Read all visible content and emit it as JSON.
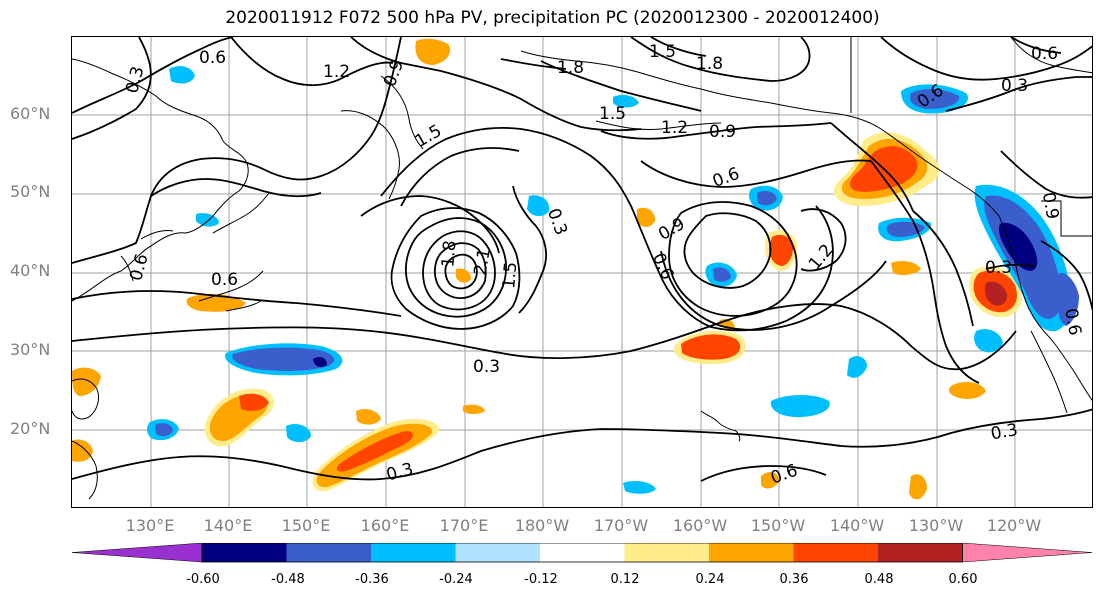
{
  "title": "2020011912 F072 500 hPa PV, precipitation PC (2020012300 - 2020012400)",
  "lat_labels": [
    "60°N",
    "50°N",
    "40°N",
    "30°N",
    "20°N"
  ],
  "lon_labels": [
    "130°E",
    "140°E",
    "150°E",
    "160°E",
    "170°E",
    "180°W",
    "170°W",
    "160°W",
    "150°W",
    "140°W",
    "130°W",
    "120°W"
  ],
  "contour_labels": [
    "0.6",
    "1.2",
    "0.9",
    "1.8",
    "1.5",
    "1.8",
    "0.6",
    "0.3",
    "0.6",
    "1.5",
    "1.5",
    "1.2",
    "0.9",
    "0.6",
    "0.6",
    "0.9",
    "0.3",
    "1.8",
    "2.1",
    "1.5",
    "0.6",
    "0.9",
    "1.2",
    "0.3",
    "0.3",
    "0.3",
    "0.3",
    "0.6",
    "0.6",
    "0.3",
    "0.6"
  ],
  "colorbar": {
    "ticks": [
      "-0.60",
      "-0.48",
      "-0.36",
      "-0.24",
      "-0.12",
      "0.12",
      "0.24",
      "0.36",
      "0.48",
      "0.60"
    ],
    "colors": [
      "#9b30d0",
      "#000080",
      "#3a5fcd",
      "#00bfff",
      "#b0e2ff",
      "#ffffff",
      "#ffec8b",
      "#ffa500",
      "#ff4500",
      "#b22222",
      "#ff82ab"
    ]
  }
}
